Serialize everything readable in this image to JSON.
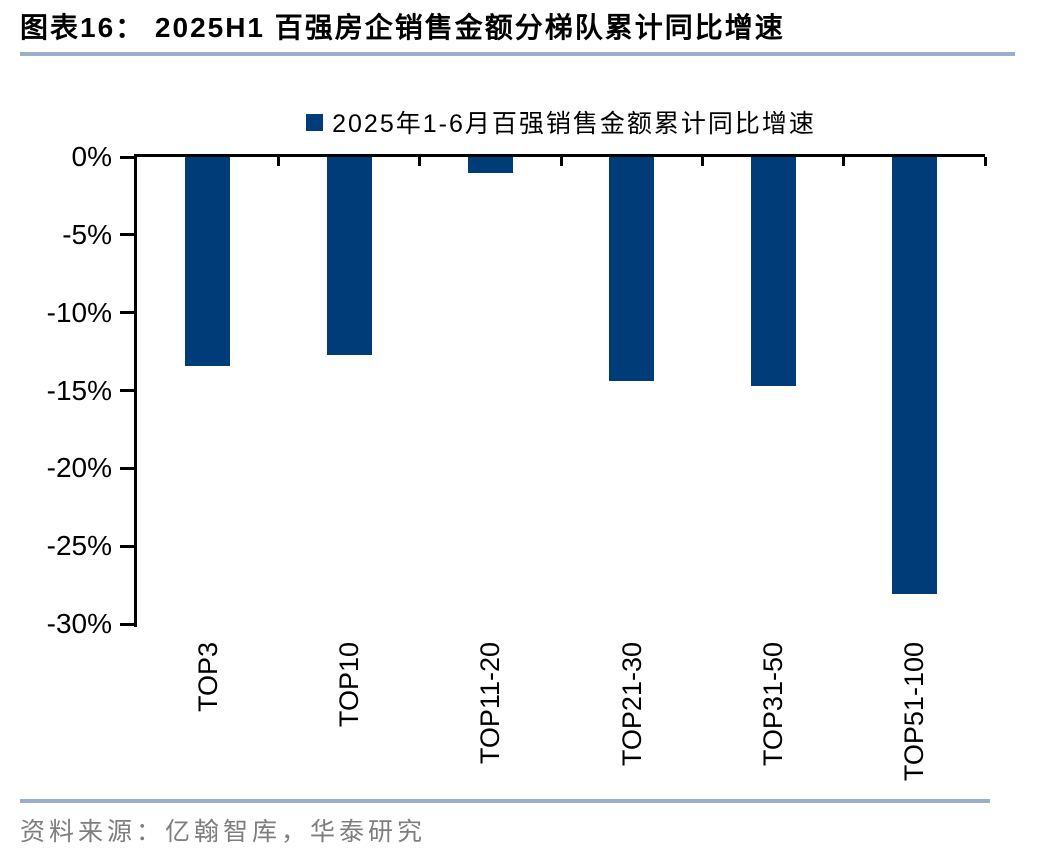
{
  "header": {
    "title": "图表16：  2025H1 百强房企销售金额分梯队累计同比增速"
  },
  "chart_data": {
    "type": "bar",
    "title": "2025H1 百强房企销售金额分梯队累计同比增速",
    "legend_label": "2025年1-6月百强销售金额累计同比增速",
    "legend_position": "top",
    "categories": [
      "TOP3",
      "TOP10",
      "TOP11-20",
      "TOP21-30",
      "TOP31-50",
      "TOP51-100"
    ],
    "values": [
      -13.4,
      -12.7,
      -1.0,
      -14.4,
      -14.7,
      -28.1
    ],
    "unit": "%",
    "ylim": [
      -30,
      0
    ],
    "yticks": [
      0,
      -5,
      -10,
      -15,
      -20,
      -25,
      -30
    ],
    "ytick_labels": [
      "0%",
      "-5%",
      "-10%",
      "-15%",
      "-20%",
      "-25%",
      "-30%"
    ],
    "grid": false,
    "bar_color": "#003C78"
  },
  "footer": {
    "source": "资料来源：亿翰智库，华泰研究"
  },
  "colors": {
    "bar": "#003C78",
    "divider": "#9BB0C8",
    "source_text": "#7E7E7E",
    "axis": "#000000"
  }
}
